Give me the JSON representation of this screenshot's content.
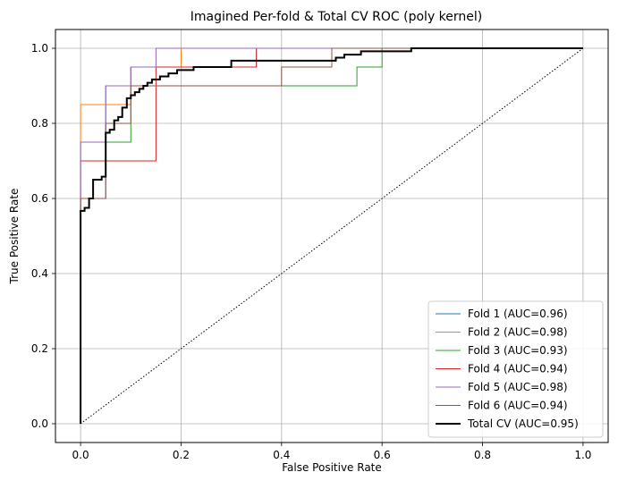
{
  "chart_data": {
    "type": "line",
    "title": "Imagined Per-fold & Total CV ROC (poly kernel)",
    "xlabel": "False Positive Rate",
    "ylabel": "True Positive Rate",
    "xlim": [
      -0.05,
      1.05
    ],
    "ylim": [
      -0.05,
      1.05
    ],
    "xticks": [
      0.0,
      0.2,
      0.4,
      0.6,
      0.8,
      1.0
    ],
    "yticks": [
      0.0,
      0.2,
      0.4,
      0.6,
      0.8,
      1.0
    ],
    "grid": true,
    "legend_position": "lower-right",
    "diagonal": {
      "x": [
        0,
        1
      ],
      "y": [
        0,
        1
      ],
      "color": "#000000",
      "style": "dotted"
    },
    "series": [
      {
        "name": "Fold 1 (AUC=0.96)",
        "color": "#1f77b4",
        "width": 1,
        "x": [
          0,
          0,
          0.05,
          0.05,
          0.1,
          0.1,
          0.15,
          0.15,
          0.2,
          0.2,
          0.35,
          0.35,
          0.5,
          0.5,
          0.7,
          0.7,
          1.0
        ],
        "y": [
          0,
          0.6,
          0.6,
          0.9,
          0.9,
          0.95,
          0.95,
          0.95,
          0.95,
          0.95,
          0.95,
          1.0,
          1.0,
          1.0,
          1.0,
          1.0,
          1.0
        ]
      },
      {
        "name": "Fold 2 (AUC=0.98)",
        "color": "#ff7f0e",
        "width": 1,
        "x": [
          0,
          0,
          0.1,
          0.1,
          0.2,
          0.2,
          1.0
        ],
        "y": [
          0,
          0.85,
          0.85,
          0.95,
          0.95,
          1.0,
          1.0
        ]
      },
      {
        "name": "Fold 3 (AUC=0.93)",
        "color": "#2ca02c",
        "width": 1,
        "x": [
          0,
          0,
          0.05,
          0.05,
          0.1,
          0.1,
          0.55,
          0.55,
          0.6,
          0.6,
          1.0
        ],
        "y": [
          0,
          0.75,
          0.75,
          0.75,
          0.75,
          0.9,
          0.9,
          0.95,
          0.95,
          1.0,
          1.0
        ]
      },
      {
        "name": "Fold 4 (AUC=0.94)",
        "color": "#d62728",
        "width": 1,
        "x": [
          0,
          0,
          0.15,
          0.15,
          0.35,
          0.35,
          1.0
        ],
        "y": [
          0,
          0.7,
          0.7,
          0.95,
          0.95,
          1.0,
          1.0
        ]
      },
      {
        "name": "Fold 5 (AUC=0.98)",
        "color": "#9467bd",
        "width": 1,
        "x": [
          0,
          0,
          0.05,
          0.05,
          0.1,
          0.1,
          0.15,
          0.15,
          1.0
        ],
        "y": [
          0,
          0.75,
          0.75,
          0.9,
          0.9,
          0.95,
          0.95,
          1.0,
          1.0
        ]
      },
      {
        "name": "Fold 6 (AUC=0.94)",
        "color": "#8c564b",
        "width": 1,
        "x": [
          0,
          0,
          0.05,
          0.05,
          0.1,
          0.1,
          0.4,
          0.4,
          0.5,
          0.5,
          1.0
        ],
        "y": [
          0,
          0.6,
          0.6,
          0.8,
          0.8,
          0.9,
          0.9,
          0.95,
          0.95,
          1.0,
          1.0
        ]
      },
      {
        "name": "Total CV (AUC=0.95)",
        "color": "#000000",
        "width": 2,
        "x": [
          0,
          0,
          0.008,
          0.008,
          0.017,
          0.017,
          0.025,
          0.025,
          0.042,
          0.042,
          0.05,
          0.05,
          0.058,
          0.058,
          0.067,
          0.067,
          0.075,
          0.075,
          0.083,
          0.083,
          0.092,
          0.092,
          0.1,
          0.1,
          0.108,
          0.108,
          0.117,
          0.117,
          0.125,
          0.125,
          0.133,
          0.133,
          0.142,
          0.142,
          0.158,
          0.158,
          0.175,
          0.175,
          0.192,
          0.192,
          0.225,
          0.225,
          0.3,
          0.3,
          0.508,
          0.508,
          0.525,
          0.525,
          0.558,
          0.558,
          0.658,
          0.658,
          0.725,
          0.725,
          1.0
        ],
        "y": [
          0,
          0.567,
          0.567,
          0.575,
          0.575,
          0.6,
          0.6,
          0.65,
          0.65,
          0.658,
          0.658,
          0.775,
          0.775,
          0.783,
          0.783,
          0.808,
          0.808,
          0.817,
          0.817,
          0.842,
          0.842,
          0.867,
          0.867,
          0.875,
          0.875,
          0.883,
          0.883,
          0.892,
          0.892,
          0.9,
          0.9,
          0.908,
          0.908,
          0.917,
          0.917,
          0.925,
          0.925,
          0.933,
          0.933,
          0.942,
          0.942,
          0.95,
          0.95,
          0.967,
          0.967,
          0.975,
          0.975,
          0.983,
          0.983,
          0.992,
          0.992,
          1.0,
          1.0,
          1.0,
          1.0
        ]
      }
    ]
  }
}
